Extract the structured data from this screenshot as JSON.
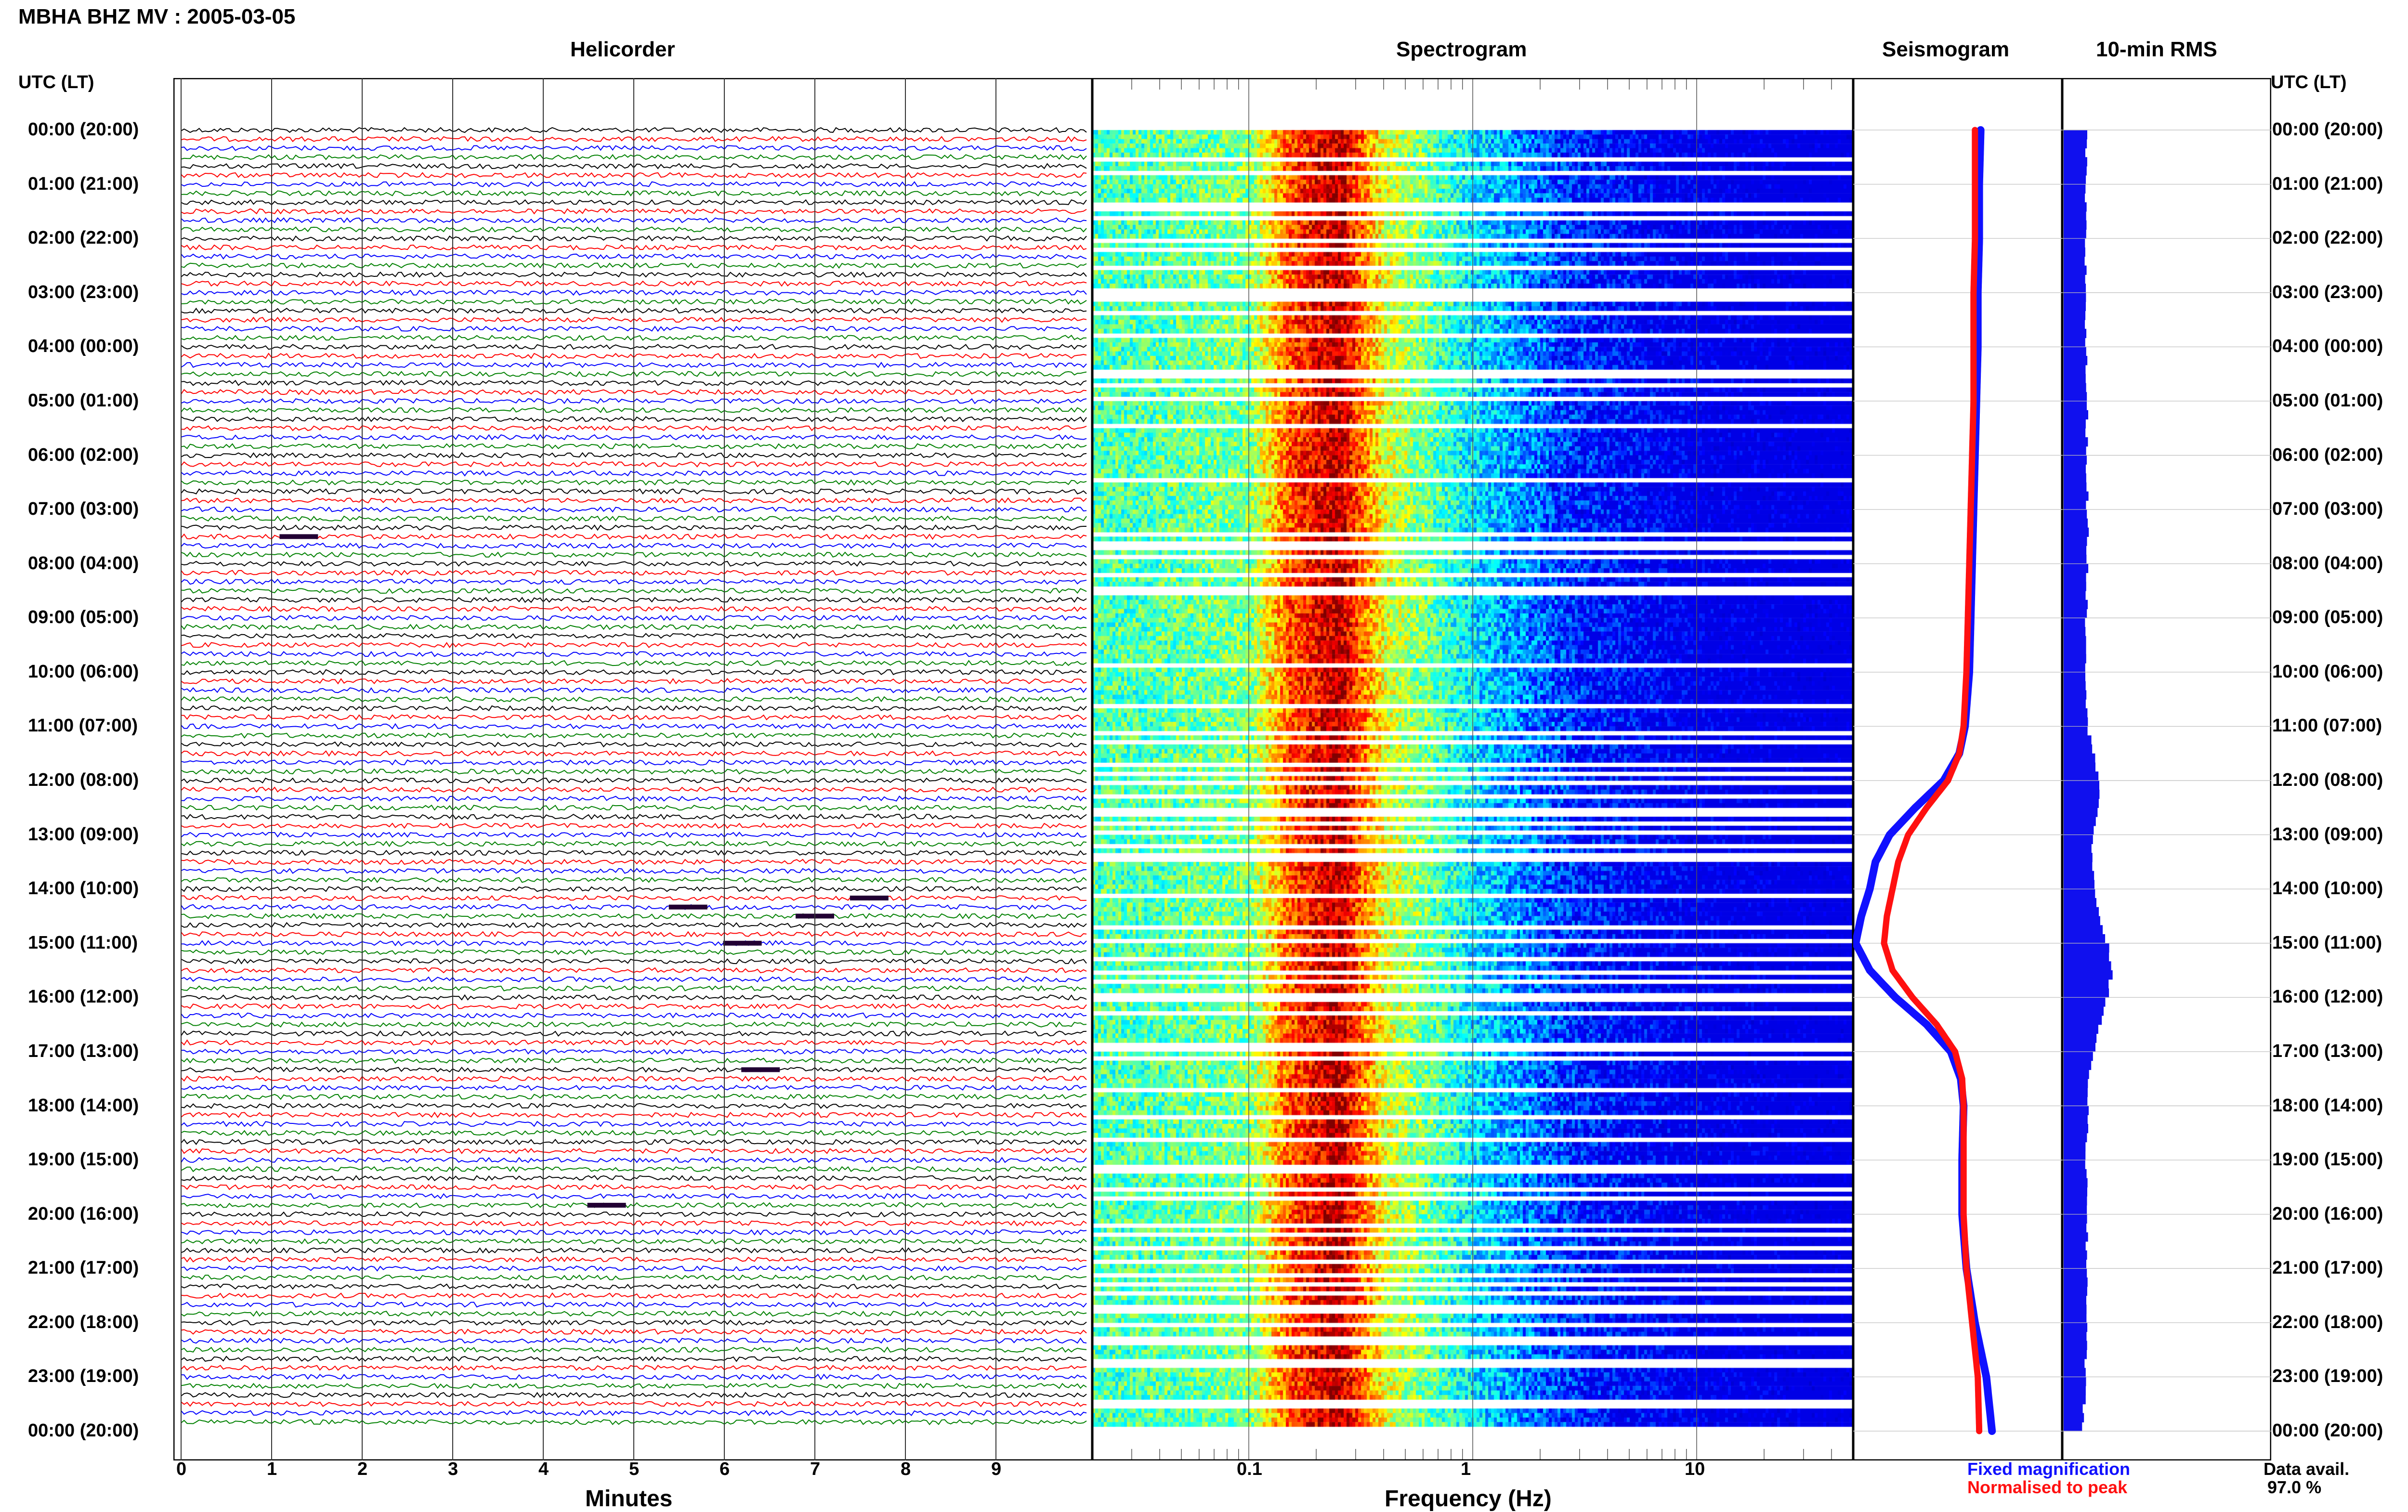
{
  "title": "MBHA BHZ MV : 2005-03-05",
  "panels": {
    "helicorder": "Helicorder",
    "spectrogram": "Spectrogram",
    "seismogram": "Seismogram",
    "rms": "10-min RMS"
  },
  "tz_label_left": "UTC (LT)",
  "tz_label_right": "UTC (LT)",
  "time_labels": [
    "00:00 (20:00)",
    "01:00 (21:00)",
    "02:00 (22:00)",
    "03:00 (23:00)",
    "04:00 (00:00)",
    "05:00 (01:00)",
    "06:00 (02:00)",
    "07:00 (03:00)",
    "08:00 (04:00)",
    "09:00 (05:00)",
    "10:00 (06:00)",
    "11:00 (07:00)",
    "12:00 (08:00)",
    "13:00 (09:00)",
    "14:00 (10:00)",
    "15:00 (11:00)",
    "16:00 (12:00)",
    "17:00 (13:00)",
    "18:00 (14:00)",
    "19:00 (15:00)",
    "20:00 (16:00)",
    "21:00 (17:00)",
    "22:00 (18:00)",
    "23:00 (19:00)",
    "00:00 (20:00)"
  ],
  "x_axes": {
    "minutes": {
      "label": "Minutes",
      "ticks": [
        "0",
        "1",
        "2",
        "3",
        "4",
        "5",
        "6",
        "7",
        "8",
        "9"
      ]
    },
    "frequency": {
      "label": "Frequency (Hz)",
      "ticks": [
        "0.1",
        "1",
        "10"
      ]
    }
  },
  "legend": {
    "fixed": "Fixed magnification",
    "normalised": "Normalised to peak",
    "fixed_color": "#1010ff",
    "normalised_color": "#ff1010"
  },
  "data_avail": {
    "label": "Data avail.",
    "value": "97.0 %"
  },
  "colors": {
    "trace_cycle": [
      "#000000",
      "#cc0000",
      "#0000cc",
      "#008800"
    ],
    "rms_bar": "#1010ee",
    "spectrogram_bg": "#0a0a90"
  },
  "chart_data": [
    {
      "type": "line",
      "name": "helicorder",
      "x_range_minutes": [
        0,
        10
      ],
      "rows": 144,
      "row_interval_minutes": 10,
      "y_range_hours_utc": [
        0,
        24
      ],
      "color_cycle": [
        "black",
        "red",
        "blue",
        "green"
      ],
      "notable_events": [
        {
          "time_utc": "07:30",
          "minute": 1.3
        },
        {
          "time_utc": "14:10",
          "minute": 7.6
        },
        {
          "time_utc": "14:20",
          "minute": 5.6
        },
        {
          "time_utc": "14:30",
          "minute": 7.0
        },
        {
          "time_utc": "15:00",
          "minute": 6.2
        },
        {
          "time_utc": "17:20",
          "minute": 6.4
        },
        {
          "time_utc": "19:50",
          "minute": 4.7
        }
      ]
    },
    {
      "type": "heatmap",
      "name": "spectrogram",
      "x_scale": "log",
      "x_range_hz": [
        0.02,
        50
      ],
      "y_range_hours_utc": [
        0,
        24
      ],
      "colormap": "jet",
      "profile_hz": [
        0.03,
        0.1,
        0.15,
        0.25,
        0.4,
        1,
        3,
        10,
        50
      ],
      "profile_level": [
        0.45,
        0.5,
        0.8,
        0.95,
        0.6,
        0.35,
        0.15,
        0.05,
        0.0
      ]
    },
    {
      "type": "line",
      "name": "seismogram",
      "y_range_hours_utc": [
        0,
        24
      ],
      "series": [
        {
          "name": "Fixed magnification",
          "time_h": [
            0,
            1,
            2,
            3,
            4,
            5,
            6,
            7,
            8,
            9,
            10,
            11,
            11.5,
            12,
            12.5,
            13,
            13.5,
            14,
            14.5,
            15,
            15.5,
            16,
            16.5,
            17,
            17.5,
            18,
            19,
            20,
            21,
            22,
            23,
            24
          ],
          "value": [
            0.12,
            0.13,
            0.13,
            0.14,
            0.14,
            0.15,
            0.16,
            0.17,
            0.18,
            0.19,
            0.2,
            0.23,
            0.27,
            0.38,
            0.58,
            0.76,
            0.86,
            0.9,
            0.96,
            1.0,
            0.9,
            0.72,
            0.5,
            0.33,
            0.26,
            0.24,
            0.25,
            0.25,
            0.22,
            0.16,
            0.08,
            0.04
          ]
        },
        {
          "name": "Normalised to peak",
          "time_h": [
            0,
            1,
            2,
            3,
            4,
            5,
            6,
            7,
            8,
            9,
            10,
            11,
            11.5,
            12,
            12.5,
            13,
            13.5,
            14,
            14.5,
            15,
            15.5,
            16,
            16.5,
            17,
            17.5,
            18,
            19,
            20,
            21,
            22,
            23,
            24
          ],
          "value": [
            0.16,
            0.16,
            0.16,
            0.17,
            0.17,
            0.17,
            0.18,
            0.19,
            0.2,
            0.21,
            0.22,
            0.24,
            0.27,
            0.35,
            0.5,
            0.63,
            0.7,
            0.74,
            0.78,
            0.8,
            0.74,
            0.6,
            0.43,
            0.3,
            0.25,
            0.24,
            0.24,
            0.24,
            0.22,
            0.18,
            0.14,
            0.13
          ]
        }
      ]
    },
    {
      "type": "bar",
      "name": "10-min RMS",
      "orientation": "horizontal",
      "bins": 144,
      "time_h": [
        0,
        1,
        2,
        3,
        4,
        5,
        6,
        7,
        8,
        9,
        10,
        11,
        11.5,
        12,
        12.5,
        13,
        13.5,
        14,
        14.5,
        15,
        15.5,
        16,
        16.5,
        17,
        17.5,
        18,
        19,
        20,
        21,
        22,
        23,
        24
      ],
      "rms_relative": [
        0.42,
        0.4,
        0.4,
        0.41,
        0.41,
        0.43,
        0.43,
        0.44,
        0.44,
        0.42,
        0.42,
        0.45,
        0.55,
        0.72,
        0.68,
        0.55,
        0.52,
        0.58,
        0.7,
        0.85,
        0.95,
        0.85,
        0.72,
        0.55,
        0.48,
        0.44,
        0.42,
        0.42,
        0.43,
        0.44,
        0.4,
        0.35
      ]
    }
  ]
}
